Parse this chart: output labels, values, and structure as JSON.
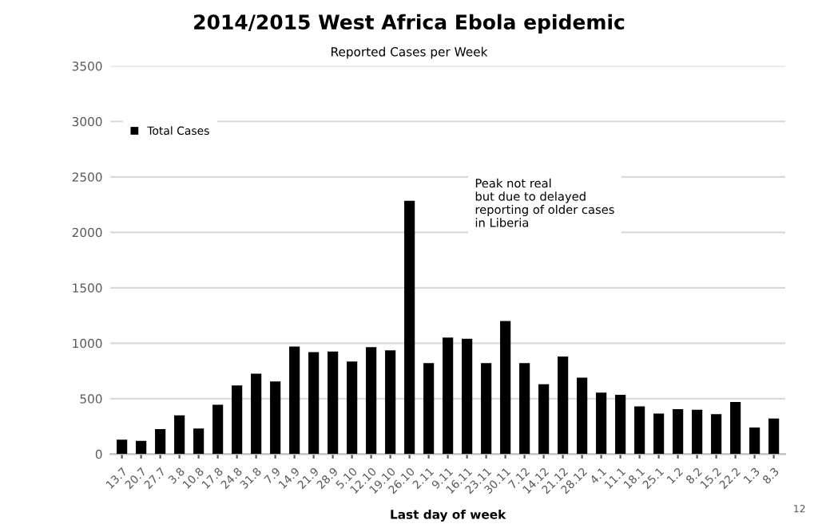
{
  "chart_data": {
    "type": "bar",
    "title": "2014/2015 West Africa Ebola epidemic",
    "subtitle": "Reported Cases per Week",
    "xlabel": "Last day of week",
    "categories": [
      "13.7",
      "20.7",
      "27.7",
      "3.8",
      "10.8",
      "17.8",
      "24.8",
      "31.8",
      "7.9",
      "14.9",
      "21.9",
      "28.9",
      "5.10",
      "12.10",
      "19.10",
      "26.10",
      "2.11",
      "9.11",
      "16.11",
      "23.11",
      "30.11",
      "7.12",
      "14.12",
      "21.12",
      "28.12",
      "4.1",
      "11.1",
      "18.1",
      "25.1",
      "1.2",
      "8.2",
      "15.2",
      "22.2",
      "1.3",
      "8.3"
    ],
    "series": [
      {
        "name": "Total Cases",
        "color": "#000000",
        "values": [
          130,
          120,
          225,
          350,
          230,
          445,
          620,
          725,
          655,
          970,
          920,
          925,
          835,
          965,
          935,
          2285,
          820,
          1050,
          1040,
          820,
          1200,
          820,
          630,
          880,
          690,
          555,
          535,
          430,
          365,
          405,
          400,
          360,
          470,
          240,
          320
        ]
      }
    ],
    "ylim": [
      0,
      3500
    ],
    "yticks": [
      0,
      500,
      1000,
      1500,
      2000,
      2500,
      3000,
      3500
    ],
    "grid": "y",
    "legend": "top left",
    "annotations": [
      "Peak not real\nbut due to delayed\nreporting of older cases\nin Liberia",
      "12"
    ]
  }
}
